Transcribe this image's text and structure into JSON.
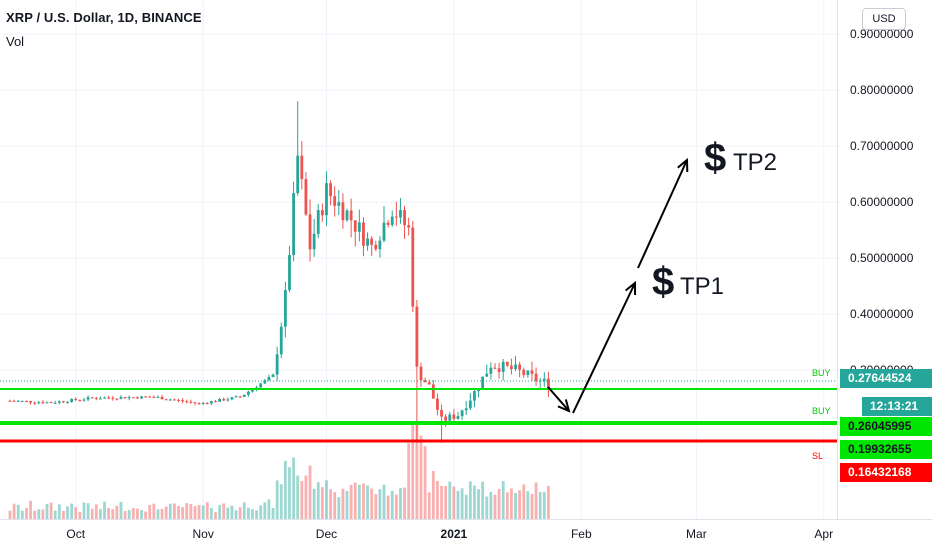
{
  "header": {
    "title": "XRP / U.S. Dollar, 1D, BINANCE",
    "indicator": "Vol"
  },
  "currency_button": "USD",
  "y_axis": {
    "ticks": [
      "0.90000000",
      "0.80000000",
      "0.70000000",
      "0.60000000",
      "0.50000000",
      "0.40000000",
      "0.30000000"
    ]
  },
  "x_axis": {
    "ticks": [
      "Oct",
      "Nov",
      "Dec",
      "2021",
      "Feb",
      "Mar",
      "Apr"
    ]
  },
  "price_tags": {
    "current": {
      "value": "0.27644524",
      "color": "#26a69a"
    },
    "countdown": {
      "value": "12:13:21",
      "color": "#26a69a"
    },
    "buy2": {
      "value": "0.26045995",
      "color": "#00e600"
    },
    "level": {
      "value": "0.19932655",
      "color": "#00e600"
    },
    "sl": {
      "value": "0.16432168",
      "color": "#ff0000"
    }
  },
  "level_labels": {
    "buy1": "BUY",
    "buy2": "BUY",
    "sl": "SL"
  },
  "annotations": {
    "tp1_symbol": "$",
    "tp1_label": "TP1",
    "tp2_symbol": "$",
    "tp2_label": "TP2"
  },
  "colors": {
    "up": "#26a69a",
    "down": "#ef5350",
    "buy_line": "#00e600",
    "sl_line": "#ff0000",
    "grid": "#f0f3fa"
  },
  "chart_data": {
    "type": "candlestick",
    "symbol": "XRP / U.S. Dollar",
    "interval": "1D",
    "exchange": "BINANCE",
    "x_range": [
      "2020-09-15",
      "2021-04-03"
    ],
    "ylim": [
      0.1,
      0.92
    ],
    "levels": [
      {
        "label": "BUY",
        "value": 0.27644524
      },
      {
        "label": "BUY",
        "value": 0.26045995
      },
      {
        "label": "",
        "value": 0.19932655
      },
      {
        "label": "SL",
        "value": 0.16432168
      }
    ],
    "targets": [
      {
        "label": "TP1",
        "value": 0.45
      },
      {
        "label": "TP2",
        "value": 0.7
      }
    ],
    "ohlc_segments": [
      {
        "from": "2020-09-15",
        "to": "2020-10-31",
        "close_range": [
          0.235,
          0.262
        ]
      },
      {
        "from": "2020-11-01",
        "to": "2020-11-20",
        "close_range": [
          0.24,
          0.3
        ]
      },
      {
        "from": "2020-11-24",
        "to": "2020-11-24",
        "high": 0.78,
        "close": 0.68
      },
      {
        "from": "2020-12-01",
        "to": "2020-12-20",
        "close_range": [
          0.5,
          0.65
        ]
      },
      {
        "from": "2020-12-23",
        "to": "2020-12-29",
        "low": 0.17,
        "close_range": [
          0.2,
          0.37
        ]
      },
      {
        "from": "2021-01-05",
        "to": "2021-01-24",
        "close_range": [
          0.26,
          0.33
        ]
      }
    ]
  }
}
